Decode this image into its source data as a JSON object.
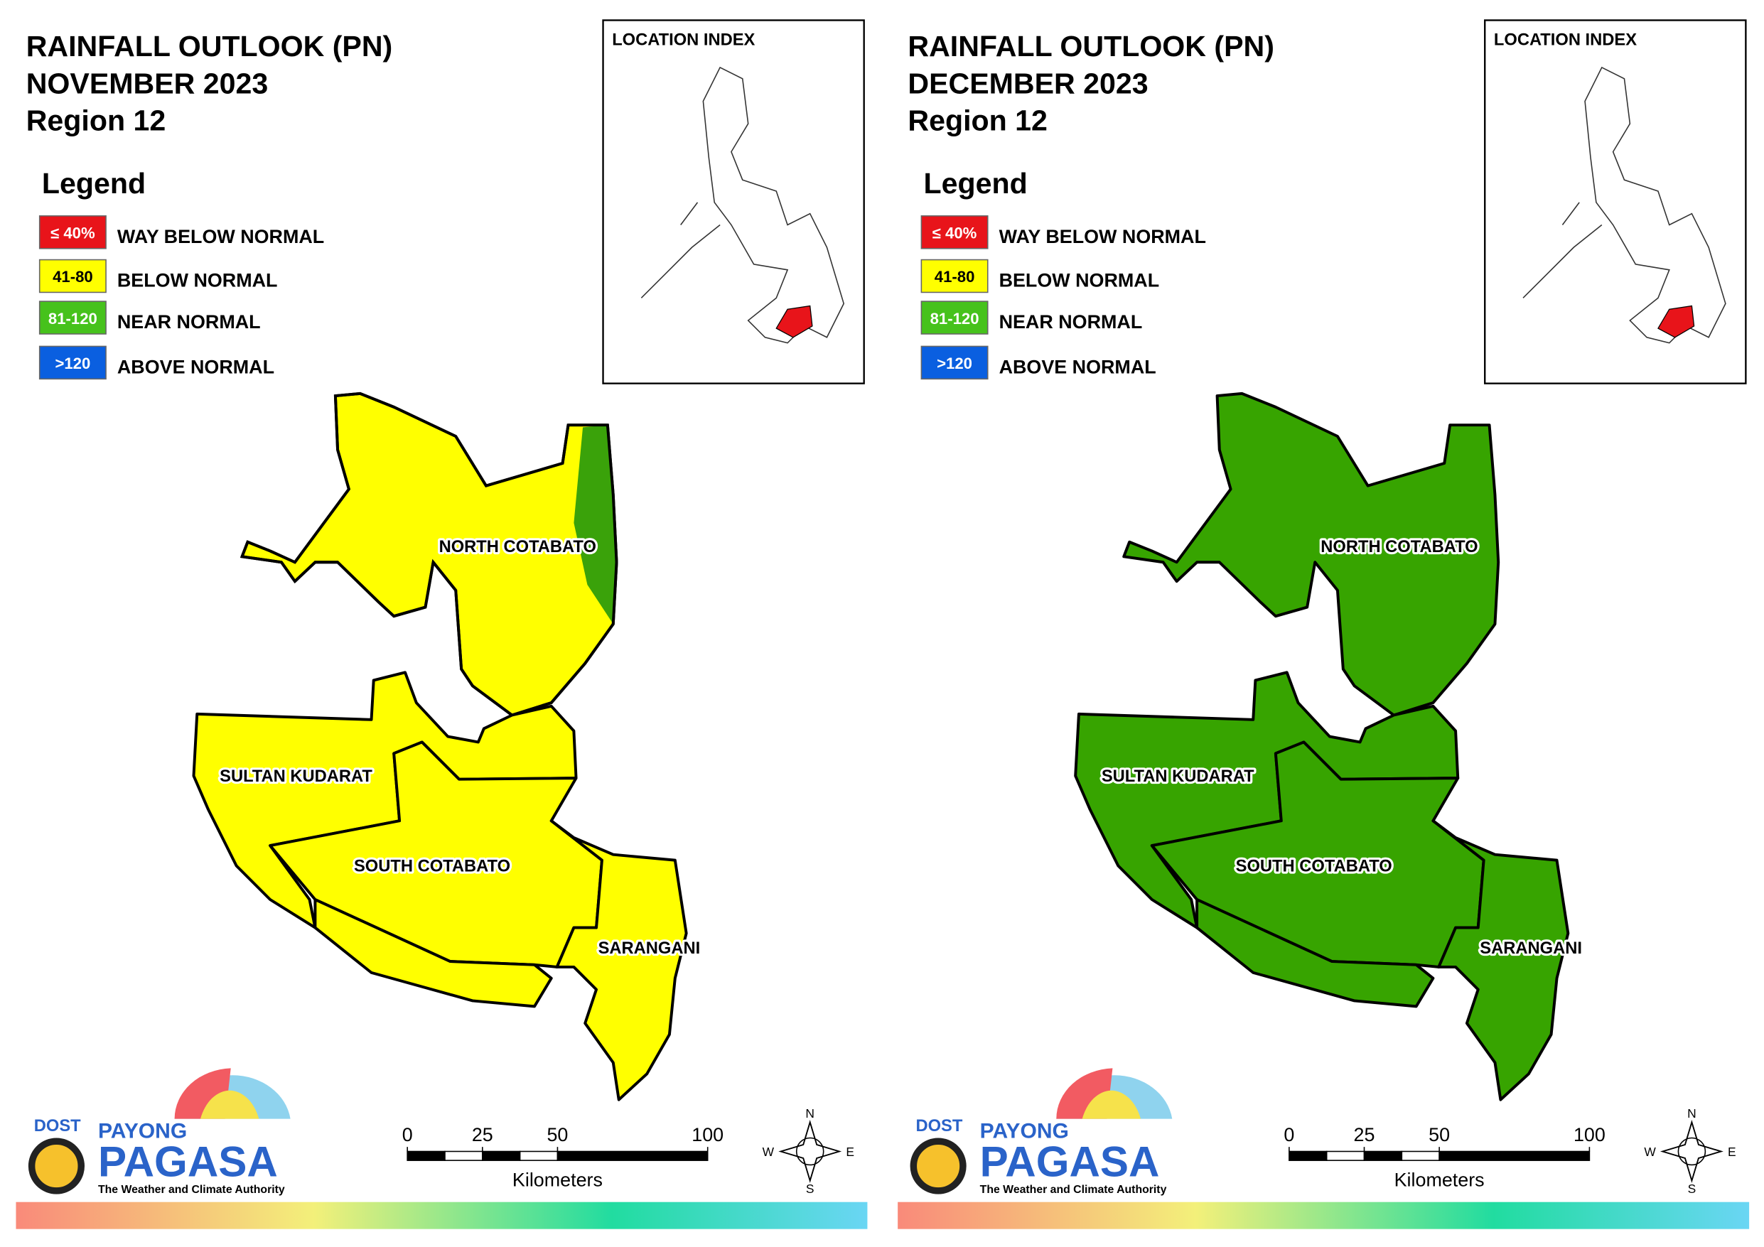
{
  "panels": [
    {
      "title": [
        "RAINFALL OUTLOOK (PN)",
        "NOVEMBER 2023",
        "Region 12"
      ],
      "legend_title": "Legend",
      "legend": [
        {
          "code": "≤ 40%",
          "label": "WAY BELOW NORMAL",
          "color": "#e8141a"
        },
        {
          "code": "41-80",
          "label": "BELOW NORMAL",
          "color": "#ffff00"
        },
        {
          "code": "81-120",
          "label": "NEAR NORMAL",
          "color": "#46c21c"
        },
        {
          "code": ">120",
          "label": "ABOVE NORMAL",
          "color": "#0a5fe0"
        }
      ],
      "location_index": "LOCATION INDEX",
      "provinces": [
        {
          "name": "NORTH COTABATO",
          "color": "#ffff00",
          "edge_color": "#3aa20a"
        },
        {
          "name": "SULTAN KUDARAT",
          "color": "#ffff00"
        },
        {
          "name": "SOUTH COTABATO",
          "color": "#ffff00"
        },
        {
          "name": "SARANGANI",
          "color": "#ffff00"
        }
      ],
      "scale": {
        "ticks": [
          0,
          25,
          50,
          100
        ],
        "unit": "Kilometers"
      },
      "compass": [
        "N",
        "E",
        "S",
        "W"
      ],
      "logo": {
        "dost": "DOST",
        "payong": "PAYONG",
        "pagasa": "PAGASA",
        "tagline": "The Weather and Climate Authority"
      }
    },
    {
      "title": [
        "RAINFALL OUTLOOK (PN)",
        "DECEMBER 2023",
        "Region 12"
      ],
      "legend_title": "Legend",
      "legend": [
        {
          "code": "≤ 40%",
          "label": "WAY BELOW NORMAL",
          "color": "#e8141a"
        },
        {
          "code": "41-80",
          "label": "BELOW NORMAL",
          "color": "#ffff00"
        },
        {
          "code": "81-120",
          "label": "NEAR NORMAL",
          "color": "#46c21c"
        },
        {
          "code": ">120",
          "label": "ABOVE NORMAL",
          "color": "#0a5fe0"
        }
      ],
      "location_index": "LOCATION INDEX",
      "provinces": [
        {
          "name": "NORTH COTABATO",
          "color": "#37a400"
        },
        {
          "name": "SULTAN KUDARAT",
          "color": "#37a400"
        },
        {
          "name": "SOUTH COTABATO",
          "color": "#37a400"
        },
        {
          "name": "SARANGANI",
          "color": "#37a400"
        }
      ],
      "scale": {
        "ticks": [
          0,
          25,
          50,
          100
        ],
        "unit": "Kilometers"
      },
      "compass": [
        "N",
        "E",
        "S",
        "W"
      ],
      "logo": {
        "dost": "DOST",
        "payong": "PAYONG",
        "pagasa": "PAGASA",
        "tagline": "The Weather and Climate Authority"
      }
    }
  ]
}
